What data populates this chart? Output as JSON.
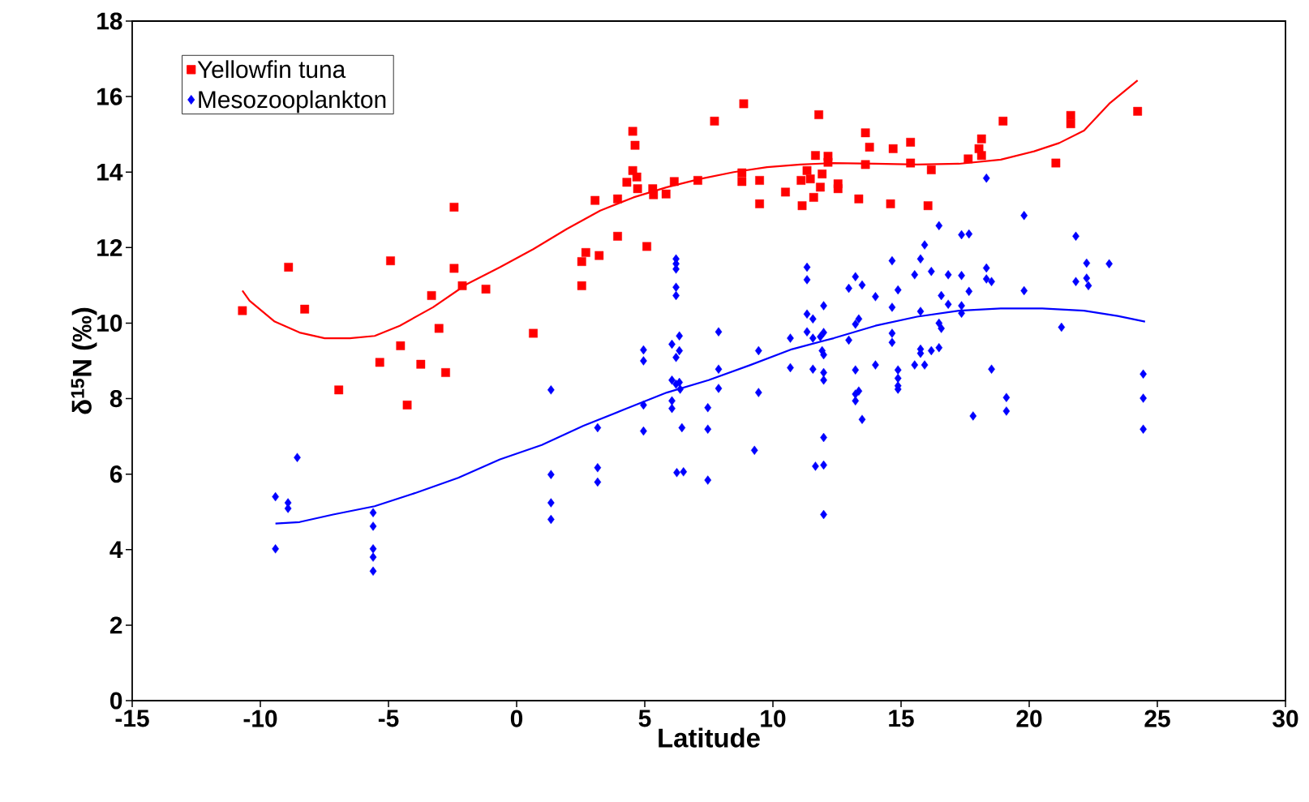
{
  "chart_data": {
    "type": "scatter",
    "xlabel": "Latitude",
    "ylabel": "δ$^{15}$N (‰)",
    "xlim": [
      -15,
      30
    ],
    "xticks": [
      -15,
      -10,
      -5,
      0,
      5,
      10,
      15,
      20,
      25,
      30
    ],
    "ylim": [
      0,
      18
    ],
    "yticks": [
      0,
      2,
      4,
      6,
      8,
      10,
      12,
      14,
      16,
      18
    ],
    "legend": "top left",
    "series": [
      {
        "name": "Yellowfin tuna",
        "color": "#ff0000",
        "marker": "square",
        "x": [
          -10.7,
          -8.9,
          -8.27,
          -6.94,
          -5.34,
          -4.92,
          -4.53,
          -4.27,
          -3.74,
          -3.32,
          -3.03,
          -2.77,
          -2.44,
          -2.44,
          -2.12,
          -1.2,
          0.65,
          2.54,
          2.54,
          2.7,
          3.06,
          3.22,
          3.94,
          3.94,
          4.3,
          4.53,
          4.53,
          4.62,
          4.69,
          4.72,
          5.08,
          5.31,
          5.34,
          5.83,
          6.15,
          7.07,
          7.72,
          8.79,
          8.79,
          8.86,
          9.48,
          9.48,
          10.49,
          11.1,
          11.14,
          11.33,
          11.46,
          11.59,
          11.66,
          11.79,
          11.85,
          11.92,
          12.15,
          12.15,
          12.54,
          12.54,
          13.35,
          13.61,
          13.61,
          13.77,
          14.59,
          14.69,
          15.37,
          15.37,
          16.05,
          16.18,
          17.62,
          18.04,
          18.14,
          18.14,
          18.98,
          21.04,
          21.62,
          21.62,
          24.23
        ],
        "values": [
          10.33,
          11.48,
          10.37,
          8.23,
          8.96,
          11.65,
          9.4,
          7.83,
          8.91,
          10.73,
          9.86,
          8.69,
          13.07,
          11.45,
          10.99,
          10.9,
          9.73,
          10.99,
          11.63,
          11.87,
          13.25,
          11.79,
          12.3,
          13.29,
          13.73,
          14.04,
          15.08,
          14.71,
          13.87,
          13.56,
          12.03,
          13.56,
          13.4,
          13.42,
          13.75,
          13.78,
          15.35,
          13.98,
          13.75,
          15.81,
          13.78,
          13.16,
          13.47,
          13.78,
          13.11,
          14.04,
          13.82,
          13.33,
          14.44,
          15.52,
          13.6,
          13.95,
          14.42,
          14.26,
          13.69,
          13.56,
          13.29,
          15.04,
          14.2,
          14.66,
          13.16,
          14.62,
          14.79,
          14.24,
          13.11,
          14.06,
          14.35,
          14.62,
          14.88,
          14.44,
          15.35,
          14.24,
          15.5,
          15.28,
          15.61
        ]
      },
      {
        "name": "Mesozooplankton",
        "color": "#0000ff",
        "marker": "diamond",
        "x": [
          -9.41,
          -9.41,
          -8.92,
          -8.92,
          -8.56,
          -5.6,
          -5.6,
          -5.6,
          -5.6,
          -5.6,
          1.34,
          1.34,
          1.34,
          1.34,
          3.16,
          3.16,
          3.16,
          4.95,
          4.95,
          4.95,
          4.95,
          6.06,
          6.06,
          6.06,
          6.06,
          6.22,
          6.22,
          6.22,
          6.22,
          6.22,
          6.22,
          6.22,
          6.25,
          6.35,
          6.35,
          6.35,
          6.38,
          6.45,
          6.51,
          7.46,
          7.46,
          7.46,
          7.88,
          7.88,
          7.88,
          9.28,
          9.44,
          9.44,
          10.68,
          10.68,
          11.33,
          11.33,
          11.33,
          11.33,
          11.56,
          11.56,
          11.56,
          11.66,
          11.85,
          11.92,
          11.98,
          11.98,
          11.98,
          11.98,
          11.98,
          11.98,
          11.98,
          11.98,
          12.96,
          12.96,
          13.22,
          13.22,
          13.22,
          13.22,
          13.22,
          13.35,
          13.35,
          13.48,
          13.48,
          14.0,
          14.0,
          14.65,
          14.65,
          14.65,
          14.65,
          14.88,
          14.88,
          14.88,
          14.88,
          14.88,
          15.53,
          15.53,
          15.76,
          15.76,
          15.76,
          15.76,
          15.92,
          15.92,
          16.18,
          16.18,
          16.48,
          16.48,
          16.48,
          16.57,
          16.57,
          16.84,
          16.84,
          17.36,
          17.36,
          17.36,
          17.36,
          17.65,
          17.65,
          17.81,
          18.33,
          18.33,
          18.33,
          18.53,
          18.53,
          19.11,
          19.11,
          19.8,
          19.8,
          21.26,
          21.82,
          21.82,
          22.24,
          22.24,
          22.31,
          23.12,
          24.45,
          24.45,
          24.45
        ],
        "values": [
          5.4,
          4.02,
          5.24,
          5.09,
          6.44,
          4.98,
          4.62,
          4.02,
          3.8,
          3.43,
          8.23,
          5.99,
          5.24,
          4.8,
          7.23,
          6.17,
          5.79,
          9.29,
          9.0,
          7.83,
          7.14,
          9.44,
          8.49,
          7.94,
          7.74,
          11.7,
          11.57,
          11.43,
          10.95,
          10.73,
          9.09,
          8.38,
          6.04,
          9.66,
          9.27,
          8.43,
          8.25,
          7.23,
          6.06,
          7.76,
          7.19,
          5.84,
          9.77,
          8.78,
          8.27,
          6.63,
          9.27,
          8.16,
          9.6,
          8.82,
          11.48,
          11.15,
          10.24,
          9.77,
          10.11,
          9.6,
          8.78,
          6.21,
          9.64,
          9.27,
          9.75,
          9.16,
          8.69,
          8.49,
          6.97,
          6.24,
          4.93,
          10.46,
          9.55,
          10.92,
          11.23,
          9.97,
          8.76,
          8.12,
          7.94,
          8.2,
          10.11,
          11.01,
          7.45,
          10.7,
          8.89,
          11.65,
          10.42,
          9.73,
          9.49,
          10.88,
          8.76,
          8.54,
          8.34,
          8.25,
          11.28,
          8.89,
          11.7,
          10.31,
          9.31,
          9.2,
          12.07,
          8.89,
          11.37,
          9.27,
          12.58,
          10.0,
          9.35,
          10.73,
          9.86,
          11.28,
          10.5,
          12.34,
          11.26,
          10.46,
          10.26,
          12.36,
          10.84,
          7.54,
          13.84,
          11.46,
          11.17,
          11.1,
          8.78,
          8.03,
          7.67,
          12.85,
          10.86,
          9.89,
          12.3,
          11.1,
          11.59,
          11.19,
          10.99,
          11.57,
          8.65,
          8.01,
          7.19
        ]
      },
      {
        "type": "line",
        "color": "#ff0000",
        "marker": "none",
        "x": [
          -10.7,
          -10.42,
          -9.44,
          -8.47,
          -7.49,
          -6.51,
          -5.54,
          -4.56,
          -3.26,
          -1.95,
          -0.65,
          0.65,
          1.95,
          3.26,
          4.56,
          5.86,
          7.16,
          8.47,
          9.77,
          11.07,
          12.37,
          14.0,
          15.63,
          17.26,
          18.89,
          20.19,
          21.17,
          22.14,
          23.12,
          24.23
        ],
        "values": [
          10.86,
          10.59,
          10.04,
          9.75,
          9.6,
          9.6,
          9.66,
          9.93,
          10.42,
          11.03,
          11.48,
          11.96,
          12.49,
          12.98,
          13.33,
          13.6,
          13.82,
          14.0,
          14.13,
          14.2,
          14.24,
          14.22,
          14.2,
          14.22,
          14.33,
          14.55,
          14.77,
          15.1,
          15.81,
          16.43
        ]
      },
      {
        "type": "line",
        "color": "#0000ff",
        "marker": "none",
        "x": [
          -9.41,
          -8.47,
          -7.16,
          -5.54,
          -3.91,
          -2.28,
          -0.65,
          0.98,
          2.61,
          4.23,
          5.86,
          7.49,
          9.12,
          10.75,
          12.37,
          14.0,
          15.63,
          17.26,
          18.89,
          20.51,
          22.14,
          23.45,
          24.52
        ],
        "values": [
          4.69,
          4.73,
          4.93,
          5.15,
          5.51,
          5.9,
          6.39,
          6.77,
          7.28,
          7.72,
          8.16,
          8.49,
          8.89,
          9.31,
          9.6,
          9.93,
          10.17,
          10.33,
          10.39,
          10.39,
          10.33,
          10.19,
          10.04
        ]
      }
    ]
  }
}
